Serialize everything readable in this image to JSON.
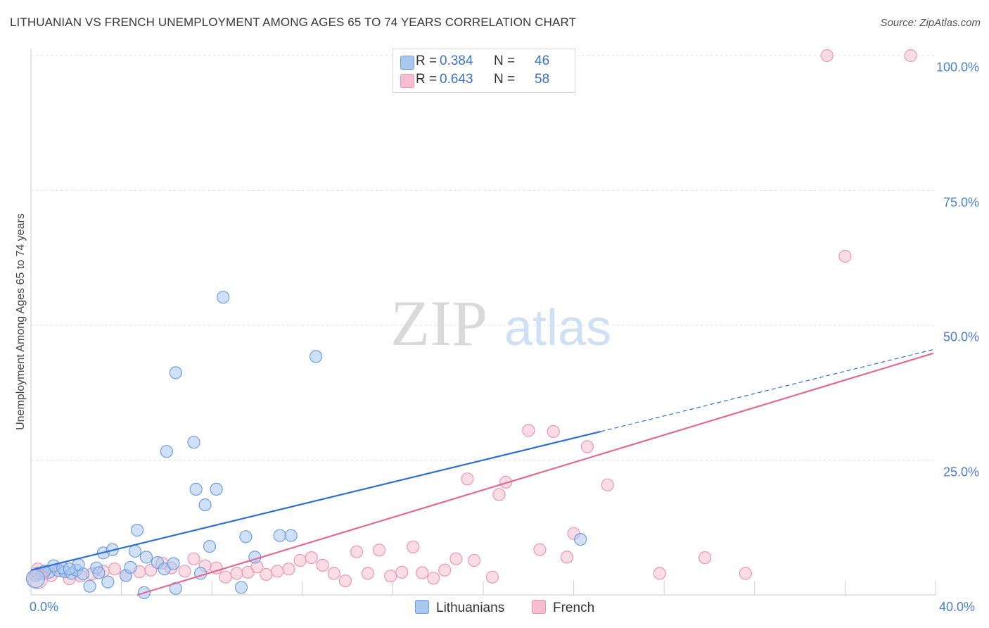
{
  "title": "LITHUANIAN VS FRENCH UNEMPLOYMENT AMONG AGES 65 TO 74 YEARS CORRELATION CHART",
  "source": "Source: ZipAtlas.com",
  "watermark": {
    "zip": "ZIP",
    "atlas": "atlas"
  },
  "legend_top": [
    {
      "r_label": "R =",
      "r_value": "0.384",
      "n_label": "N =",
      "n_value": "46"
    },
    {
      "r_label": "R =",
      "r_value": "0.643",
      "n_label": "N =",
      "n_value": "58"
    }
  ],
  "legend_bottom": [
    {
      "label": "Lithuanians"
    },
    {
      "label": "French"
    }
  ],
  "colors": {
    "lithuanians_fill": "#a9c8f0",
    "lithuanians_stroke": "#6f9ee0",
    "lithuanians_line": "#2f6fd0",
    "french_fill": "#f6bfd0",
    "french_stroke": "#eb96b3",
    "french_line": "#e06a95",
    "tick_text": "#4a7fcb"
  },
  "chart_data": {
    "type": "scatter",
    "title": "LITHUANIAN VS FRENCH UNEMPLOYMENT AMONG AGES 65 TO 74 YEARS CORRELATION CHART",
    "xlabel": "",
    "ylabel": "Unemployment Among Ages 65 to 74 years",
    "xlim": [
      0,
      40
    ],
    "ylim": [
      0,
      100
    ],
    "x_tick_labels": [
      "0.0%",
      "40.0%"
    ],
    "y_ticks": [
      25,
      50,
      75,
      100
    ],
    "y_tick_labels": [
      "25.0%",
      "50.0%",
      "75.0%",
      "100.0%"
    ],
    "grid": true,
    "legend_position": "top-center",
    "series": [
      {
        "name": "Lithuanians",
        "r": 0.384,
        "n": 46,
        "trend": {
          "x0": 0,
          "y0": 4.6,
          "x1": 25.2,
          "y1": 30.3,
          "dashed_to_x": 40,
          "dashed_to_y": 45.6
        },
        "points": [
          [
            0.2,
            3.6
          ],
          [
            0.5,
            3.9
          ],
          [
            0.8,
            4.2
          ],
          [
            1.2,
            4.5
          ],
          [
            1.0,
            5.4
          ],
          [
            1.5,
            4.3
          ],
          [
            1.8,
            4.0
          ],
          [
            2.0,
            4.6
          ],
          [
            2.3,
            3.9
          ],
          [
            2.6,
            1.6
          ],
          [
            2.9,
            5.0
          ],
          [
            3.2,
            7.8
          ],
          [
            3.6,
            8.4
          ],
          [
            3.4,
            2.4
          ],
          [
            4.2,
            3.6
          ],
          [
            4.4,
            5.1
          ],
          [
            4.6,
            8.1
          ],
          [
            4.7,
            12.0
          ],
          [
            5.1,
            7.0
          ],
          [
            5.0,
            0.4
          ],
          [
            5.6,
            6.0
          ],
          [
            6.0,
            26.6
          ],
          [
            5.9,
            4.8
          ],
          [
            6.3,
            5.8
          ],
          [
            6.4,
            1.2
          ],
          [
            6.4,
            41.2
          ],
          [
            7.2,
            28.3
          ],
          [
            7.3,
            19.6
          ],
          [
            7.5,
            4.0
          ],
          [
            7.7,
            16.7
          ],
          [
            7.9,
            9.0
          ],
          [
            8.2,
            19.6
          ],
          [
            8.5,
            55.2
          ],
          [
            9.3,
            1.4
          ],
          [
            9.5,
            10.8
          ],
          [
            9.9,
            7.0
          ],
          [
            11.0,
            11.0
          ],
          [
            11.5,
            11.0
          ],
          [
            12.6,
            44.2
          ],
          [
            24.3,
            10.3
          ],
          [
            0.3,
            4.0
          ],
          [
            0.6,
            4.4
          ],
          [
            2.1,
            5.6
          ],
          [
            1.4,
            5.0
          ],
          [
            3.0,
            4.1
          ],
          [
            1.7,
            4.8
          ]
        ]
      },
      {
        "name": "French",
        "r": 0.643,
        "n": 58,
        "trend": {
          "x0": 4.7,
          "y0": 0,
          "x1": 39.9,
          "y1": 44.8
        },
        "points": [
          [
            0.3,
            4.8
          ],
          [
            0.6,
            4.2
          ],
          [
            0.9,
            3.6
          ],
          [
            1.3,
            4.5
          ],
          [
            1.7,
            3.0
          ],
          [
            2.2,
            3.5
          ],
          [
            2.7,
            3.9
          ],
          [
            3.2,
            4.4
          ],
          [
            3.7,
            4.8
          ],
          [
            4.2,
            3.6
          ],
          [
            4.8,
            4.3
          ],
          [
            5.3,
            4.6
          ],
          [
            5.8,
            5.9
          ],
          [
            6.2,
            5.0
          ],
          [
            6.8,
            4.4
          ],
          [
            7.2,
            6.7
          ],
          [
            7.7,
            5.4
          ],
          [
            8.2,
            5.0
          ],
          [
            8.6,
            3.3
          ],
          [
            9.1,
            4.0
          ],
          [
            9.6,
            4.2
          ],
          [
            10.0,
            5.2
          ],
          [
            10.4,
            3.8
          ],
          [
            10.9,
            4.4
          ],
          [
            11.4,
            4.8
          ],
          [
            11.9,
            6.4
          ],
          [
            12.4,
            6.9
          ],
          [
            12.9,
            5.5
          ],
          [
            13.4,
            4.0
          ],
          [
            13.9,
            2.6
          ],
          [
            14.4,
            8.0
          ],
          [
            14.9,
            4.0
          ],
          [
            15.4,
            8.3
          ],
          [
            15.9,
            3.5
          ],
          [
            16.4,
            4.2
          ],
          [
            16.9,
            8.9
          ],
          [
            17.3,
            4.1
          ],
          [
            17.8,
            3.1
          ],
          [
            18.3,
            4.6
          ],
          [
            18.8,
            6.7
          ],
          [
            19.3,
            21.5
          ],
          [
            19.6,
            6.4
          ],
          [
            20.4,
            3.3
          ],
          [
            20.7,
            18.6
          ],
          [
            21.0,
            20.9
          ],
          [
            22.0,
            30.5
          ],
          [
            22.5,
            8.4
          ],
          [
            23.1,
            30.3
          ],
          [
            23.7,
            7.0
          ],
          [
            24.0,
            11.4
          ],
          [
            24.6,
            27.5
          ],
          [
            25.5,
            20.4
          ],
          [
            27.8,
            4.0
          ],
          [
            29.8,
            6.9
          ],
          [
            31.6,
            4.0
          ],
          [
            35.2,
            100.0
          ],
          [
            36.0,
            62.8
          ],
          [
            38.9,
            100.0
          ]
        ]
      }
    ]
  }
}
